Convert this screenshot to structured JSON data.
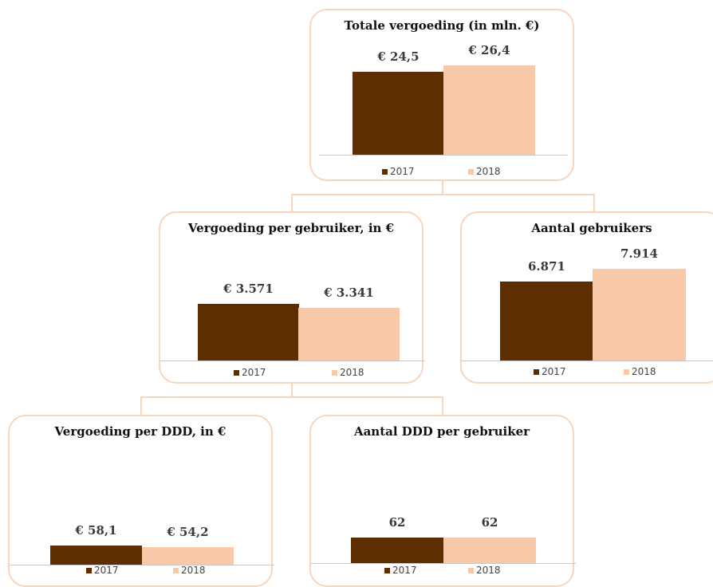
{
  "colors": {
    "y2017": "#5e2e00",
    "y2018": "#f8c9a9",
    "frame": "#f8d5bd"
  },
  "chart_data": [
    {
      "id": "totale",
      "type": "bar",
      "title": "Totale vergoeding (in mln. €)",
      "categories": [
        "2017",
        "2018"
      ],
      "values": [
        24.5,
        26.4
      ],
      "labels": [
        "€ 24,5",
        "€ 26,4"
      ],
      "legend": [
        "2017",
        "2018"
      ],
      "legend_position": "bottom"
    },
    {
      "id": "per_gebruiker",
      "type": "bar",
      "title": "Vergoeding per gebruiker, in €",
      "categories": [
        "2017",
        "2018"
      ],
      "values": [
        3571,
        3341
      ],
      "labels": [
        "€ 3.571",
        "€ 3.341"
      ],
      "legend": [
        "2017",
        "2018"
      ],
      "legend_position": "bottom"
    },
    {
      "id": "gebruikers",
      "type": "bar",
      "title": "Aantal gebruikers",
      "categories": [
        "2017",
        "2018"
      ],
      "values": [
        6871,
        7914
      ],
      "labels": [
        "6.871",
        "7.914"
      ],
      "legend": [
        "2017",
        "2018"
      ],
      "legend_position": "bottom"
    },
    {
      "id": "per_ddd",
      "type": "bar",
      "title": "Vergoeding per DDD, in €",
      "categories": [
        "2017",
        "2018"
      ],
      "values": [
        58.1,
        54.2
      ],
      "labels": [
        "€ 58,1",
        "€ 54,2"
      ],
      "legend": [
        "2017",
        "2018"
      ],
      "legend_position": "bottom"
    },
    {
      "id": "ddd_per_gebruiker",
      "type": "bar",
      "title": "Aantal DDD per gebruiker",
      "categories": [
        "2017",
        "2018"
      ],
      "values": [
        62,
        62
      ],
      "labels": [
        "62",
        "62"
      ],
      "legend": [
        "2017",
        "2018"
      ],
      "legend_position": "bottom"
    }
  ]
}
